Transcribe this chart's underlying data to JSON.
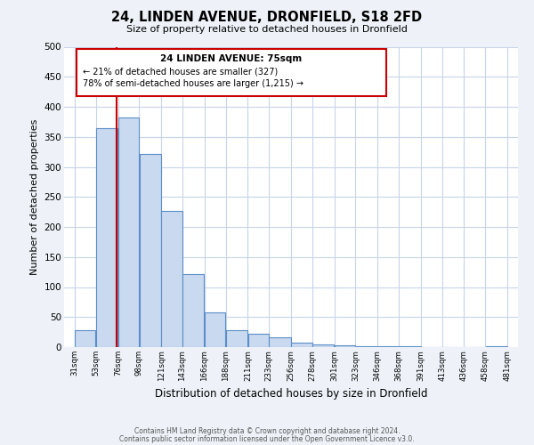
{
  "title": "24, LINDEN AVENUE, DRONFIELD, S18 2FD",
  "subtitle": "Size of property relative to detached houses in Dronfield",
  "xlabel": "Distribution of detached houses by size in Dronfield",
  "ylabel": "Number of detached properties",
  "bar_left_edges": [
    31,
    53,
    76,
    98,
    121,
    143,
    166,
    188,
    211,
    233,
    256,
    278,
    301,
    323,
    346,
    368,
    391,
    413,
    436,
    458
  ],
  "bar_widths": [
    22,
    23,
    22,
    23,
    22,
    23,
    22,
    23,
    22,
    23,
    22,
    23,
    22,
    23,
    22,
    23,
    22,
    23,
    22,
    23
  ],
  "bar_heights": [
    28,
    365,
    382,
    322,
    226,
    121,
    58,
    28,
    22,
    16,
    7,
    5,
    3,
    2,
    1,
    1,
    0,
    0,
    0,
    2
  ],
  "bar_color": "#c9d9f0",
  "bar_edge_color": "#5b8ec7",
  "ylim": [
    0,
    500
  ],
  "yticks": [
    0,
    50,
    100,
    150,
    200,
    250,
    300,
    350,
    400,
    450,
    500
  ],
  "x_tick_labels": [
    "31sqm",
    "53sqm",
    "76sqm",
    "98sqm",
    "121sqm",
    "143sqm",
    "166sqm",
    "188sqm",
    "211sqm",
    "233sqm",
    "256sqm",
    "278sqm",
    "301sqm",
    "323sqm",
    "346sqm",
    "368sqm",
    "391sqm",
    "413sqm",
    "436sqm",
    "458sqm",
    "481sqm"
  ],
  "x_tick_positions": [
    31,
    53,
    76,
    98,
    121,
    143,
    166,
    188,
    211,
    233,
    256,
    278,
    301,
    323,
    346,
    368,
    391,
    413,
    436,
    458,
    481
  ],
  "property_size": 75,
  "property_line_color": "#cc0000",
  "annotation_box_color": "#cc0000",
  "annotation_text_line1": "24 LINDEN AVENUE: 75sqm",
  "annotation_text_line2": "← 21% of detached houses are smaller (327)",
  "annotation_text_line3": "78% of semi-detached houses are larger (1,215) →",
  "footnote1": "Contains HM Land Registry data © Crown copyright and database right 2024.",
  "footnote2": "Contains public sector information licensed under the Open Government Licence v3.0.",
  "bg_color": "#eef2f8",
  "plot_bg_color": "#ffffff",
  "grid_color": "#c8d4e8"
}
